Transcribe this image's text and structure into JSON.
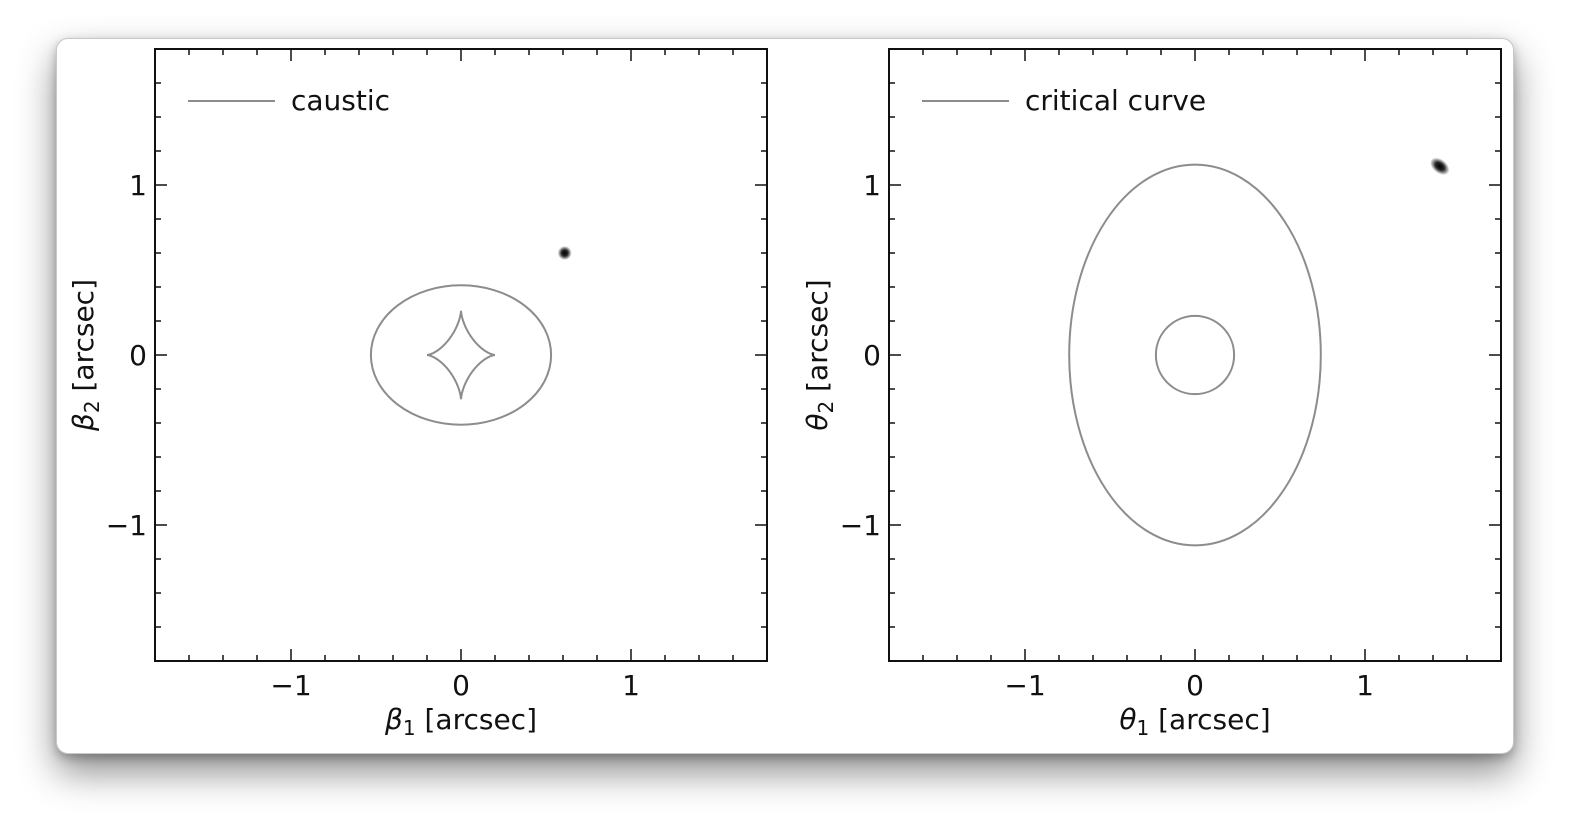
{
  "chart_data": [
    {
      "type": "line",
      "panel": "source-plane",
      "xlabel_symbol": "β",
      "xlabel_sub": "1",
      "xlabel_unit": " [arcsec]",
      "ylabel_symbol": "β",
      "ylabel_sub": "2",
      "ylabel_unit": " [arcsec]",
      "xlim": [
        -1.8,
        1.8
      ],
      "ylim": [
        -1.8,
        1.8
      ],
      "xticks": [
        -1,
        0,
        1
      ],
      "yticks": [
        -1,
        0,
        1
      ],
      "xtick_labels": [
        "−1",
        "0",
        "1"
      ],
      "ytick_labels": [
        "−1",
        "0",
        "1"
      ],
      "legend": {
        "label": "caustic",
        "placement": "top-left"
      },
      "line_color": "#8c8c8c",
      "series": [
        {
          "shape": "ellipse",
          "center": [
            0,
            0
          ],
          "semi_axes": [
            0.53,
            0.41
          ]
        },
        {
          "shape": "astroid",
          "center": [
            0,
            0
          ],
          "semi_axes": [
            0.2,
            0.26
          ]
        }
      ],
      "source": {
        "x": 0.61,
        "y": 0.6,
        "color": "#000000"
      }
    },
    {
      "type": "line",
      "panel": "image-plane",
      "xlabel_symbol": "θ",
      "xlabel_sub": "1",
      "xlabel_unit": " [arcsec]",
      "ylabel_symbol": "θ",
      "ylabel_sub": "2",
      "ylabel_unit": " [arcsec]",
      "xlim": [
        -1.8,
        1.8
      ],
      "ylim": [
        -1.8,
        1.8
      ],
      "xticks": [
        -1,
        0,
        1
      ],
      "yticks": [
        -1,
        0,
        1
      ],
      "xtick_labels": [
        "−1",
        "0",
        "1"
      ],
      "ytick_labels": [
        "−1",
        "0",
        "1"
      ],
      "legend": {
        "label": "critical curve",
        "placement": "top-left"
      },
      "line_color": "#8c8c8c",
      "series": [
        {
          "shape": "ellipse",
          "center": [
            0,
            0
          ],
          "semi_axes": [
            0.74,
            1.12
          ]
        },
        {
          "shape": "ellipse",
          "center": [
            0,
            0
          ],
          "semi_axes": [
            0.23,
            0.23
          ]
        }
      ],
      "source": {
        "x": 1.44,
        "y": 1.11,
        "color": "#000000"
      }
    }
  ]
}
